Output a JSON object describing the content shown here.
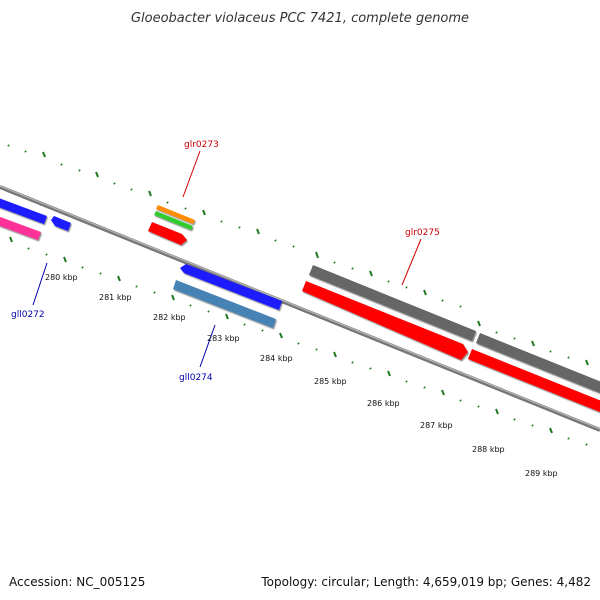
{
  "title": "Gloeobacter violaceus PCC 7421, complete genome",
  "footer": {
    "accession": "Accession: NC_005125",
    "summary": "Topology: circular; Length: 4,659,019 bp; Genes: 4,482"
  },
  "scale": {
    "unit": "kbp",
    "tick_labels": [
      "280 kbp",
      "281 kbp",
      "282 kbp",
      "283 kbp",
      "284 kbp",
      "285 kbp",
      "286 kbp",
      "287 kbp",
      "288 kbp",
      "289 kbp"
    ]
  },
  "colors": {
    "backbone": "#8a8a8a",
    "tick_green": "#1f7a1f",
    "forward_label": "#cc0000",
    "reverse_label": "#0000aa"
  },
  "gene_labels": [
    {
      "id": "glr0273",
      "text": "glr0273",
      "strand": "forward",
      "color": "#cc0000"
    },
    {
      "id": "glr0275",
      "text": "glr0275",
      "strand": "forward",
      "color": "#cc0000"
    },
    {
      "id": "gll0272",
      "text": "gll0272",
      "strand": "reverse",
      "color": "#0000aa"
    },
    {
      "id": "gll0274",
      "text": "gll0274",
      "strand": "reverse",
      "color": "#0000aa"
    }
  ],
  "features": [
    {
      "name": "gll0272-cds",
      "strand": "reverse",
      "color": "#1a1aff"
    },
    {
      "name": "gll0272-gene",
      "strand": "reverse",
      "color": "#ff3399"
    },
    {
      "name": "small-reverse-cds",
      "strand": "reverse",
      "color": "#1a1aff"
    },
    {
      "name": "glr0273-orange",
      "strand": "forward",
      "color": "#ff8c00"
    },
    {
      "name": "glr0273-green",
      "strand": "forward",
      "color": "#33cc33"
    },
    {
      "name": "glr0273-cds",
      "strand": "forward",
      "color": "#ff0000"
    },
    {
      "name": "gll0274-cds",
      "strand": "reverse",
      "color": "#1a1aff"
    },
    {
      "name": "gll0274-gene",
      "strand": "reverse",
      "color": "#4682b4"
    },
    {
      "name": "glr0275-gene-1",
      "strand": "forward",
      "color": "#666666"
    },
    {
      "name": "glr0275-gene-2",
      "strand": "forward",
      "color": "#666666"
    },
    {
      "name": "glr0275-cds-1",
      "strand": "forward",
      "color": "#ff0000"
    },
    {
      "name": "glr0275-cds-2",
      "strand": "forward",
      "color": "#ff0000"
    }
  ]
}
